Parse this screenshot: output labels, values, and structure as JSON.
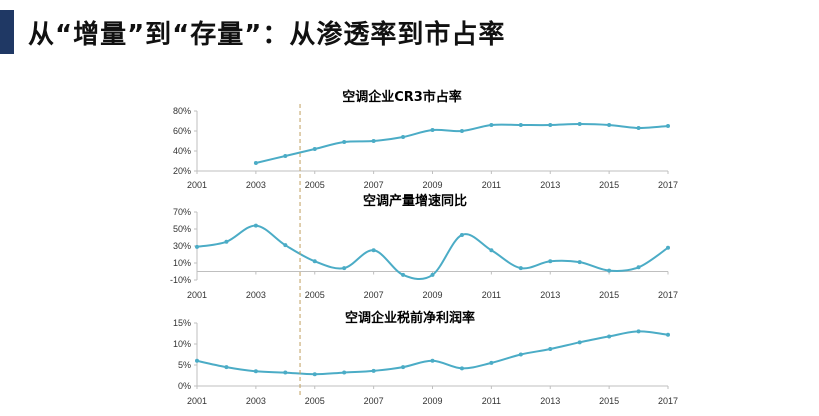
{
  "slide": {
    "title": "从“增量”到“存量”：从渗透率到市占率",
    "accent_color": "#1f3864"
  },
  "footer": {
    "source": ""
  },
  "colors": {
    "line": "#4bacc6",
    "divider": "#c0a060",
    "axis": "#bfbfbf"
  },
  "chart_data": [
    {
      "type": "line",
      "title": "空调企业CR3市占率",
      "x": [
        2003,
        2004,
        2005,
        2006,
        2007,
        2008,
        2009,
        2010,
        2011,
        2012,
        2013,
        2014,
        2015,
        2016,
        2017
      ],
      "series": [
        {
          "values": [
            28,
            35,
            42,
            49,
            50,
            54,
            61,
            60,
            66,
            66,
            66,
            67,
            66,
            63,
            65
          ]
        }
      ],
      "xticks": [
        "2001",
        "2003",
        "2005",
        "2007",
        "2009",
        "2011",
        "2013",
        "2015",
        "2017"
      ],
      "yticks": [
        "80%",
        "60%",
        "40%",
        "20%"
      ],
      "xlim": [
        2001,
        2017
      ],
      "ylim": [
        20,
        80
      ],
      "marker_year": 2004.5
    },
    {
      "type": "line",
      "title": "空调产量增速同比",
      "x": [
        2001,
        2002,
        2003,
        2004,
        2005,
        2006,
        2007,
        2008,
        2009,
        2010,
        2011,
        2012,
        2013,
        2014,
        2015,
        2016,
        2017
      ],
      "series": [
        {
          "values": [
            29,
            35,
            54,
            31,
            12,
            4,
            25,
            -4,
            -4,
            43,
            25,
            4,
            12,
            11,
            1,
            5,
            28
          ]
        }
      ],
      "xticks": [
        "2001",
        "2003",
        "2005",
        "2007",
        "2009",
        "2011",
        "2013",
        "2015",
        "2017"
      ],
      "yticks": [
        "70%",
        "50%",
        "30%",
        "10%",
        "-10%"
      ],
      "xlim": [
        2001,
        2017
      ],
      "ylim": [
        -10,
        70
      ],
      "marker_year": 2004.5
    },
    {
      "type": "line",
      "title": "空调企业税前净利润率",
      "x": [
        2001,
        2002,
        2003,
        2004,
        2005,
        2006,
        2007,
        2008,
        2009,
        2010,
        2011,
        2012,
        2013,
        2014,
        2015,
        2016,
        2017
      ],
      "series": [
        {
          "values": [
            6,
            4.5,
            3.5,
            3.2,
            2.8,
            3.2,
            3.6,
            4.5,
            6,
            4.2,
            5.5,
            7.5,
            8.8,
            10.4,
            11.8,
            13,
            12.2
          ]
        }
      ],
      "xticks": [
        "2001",
        "2003",
        "2005",
        "2007",
        "2009",
        "2011",
        "2013",
        "2015",
        "2017"
      ],
      "yticks": [
        "15%",
        "10%",
        "5%",
        "0%"
      ],
      "xlim": [
        2001,
        2017
      ],
      "ylim": [
        0,
        15
      ],
      "marker_year": 2004.5
    }
  ]
}
